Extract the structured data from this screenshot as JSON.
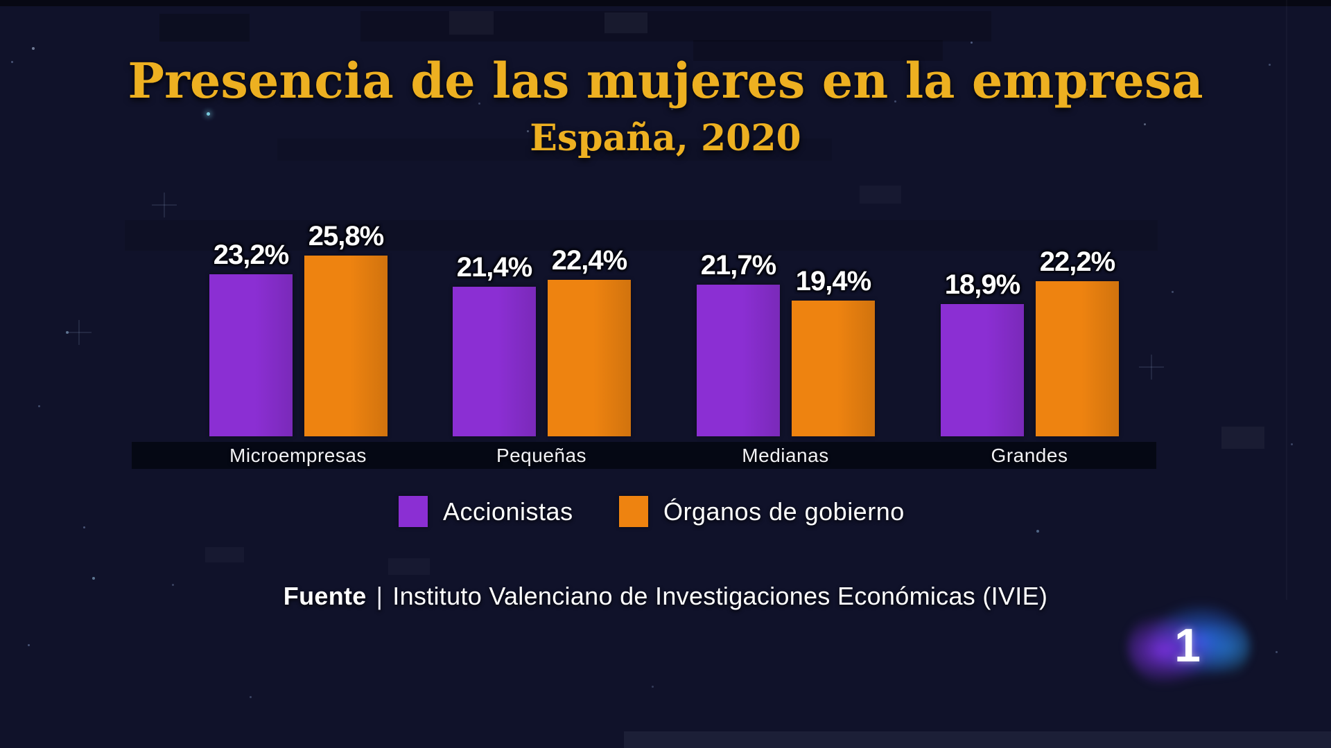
{
  "header": {
    "title": "Presencia de las mujeres en la empresa",
    "subtitle": "España, 2020"
  },
  "chart_data": {
    "type": "bar",
    "title": "Presencia de las mujeres en la empresa",
    "subtitle": "España, 2020",
    "categories": [
      "Microempresas",
      "Pequeñas",
      "Medianas",
      "Grandes"
    ],
    "series": [
      {
        "name": "Accionistas",
        "color": "#8b2fd3",
        "values": [
          23.2,
          21.4,
          21.7,
          18.9
        ],
        "labels": [
          "23,2%",
          "21,4%",
          "21,7%",
          "18,9%"
        ]
      },
      {
        "name": "Órganos de gobierno",
        "color": "#ee8310",
        "values": [
          25.8,
          22.4,
          19.4,
          22.2
        ],
        "labels": [
          "25,8%",
          "22,4%",
          "19,4%",
          "22,2%"
        ]
      }
    ],
    "ylim": [
      0,
      30
    ],
    "value_suffix": "%",
    "decimal_separator": ",",
    "grid": false,
    "axes_visible": false,
    "legend_position": "bottom"
  },
  "legend": {
    "items": [
      {
        "label": "Accionistas",
        "color": "#8b2fd3"
      },
      {
        "label": "Órganos de gobierno",
        "color": "#ee8310"
      }
    ]
  },
  "source": {
    "prefix": "Fuente",
    "separator": "|",
    "text": "Instituto Valenciano de Investigaciones Económicas (IVIE)"
  },
  "channel_logo": {
    "text": "1"
  },
  "colors": {
    "background": "#10122a",
    "title_gold": "#edb021",
    "bar_accionistas": "#8b2fd3",
    "bar_organos": "#ee8310",
    "category_band": "#050814",
    "text_white": "#ffffff"
  }
}
